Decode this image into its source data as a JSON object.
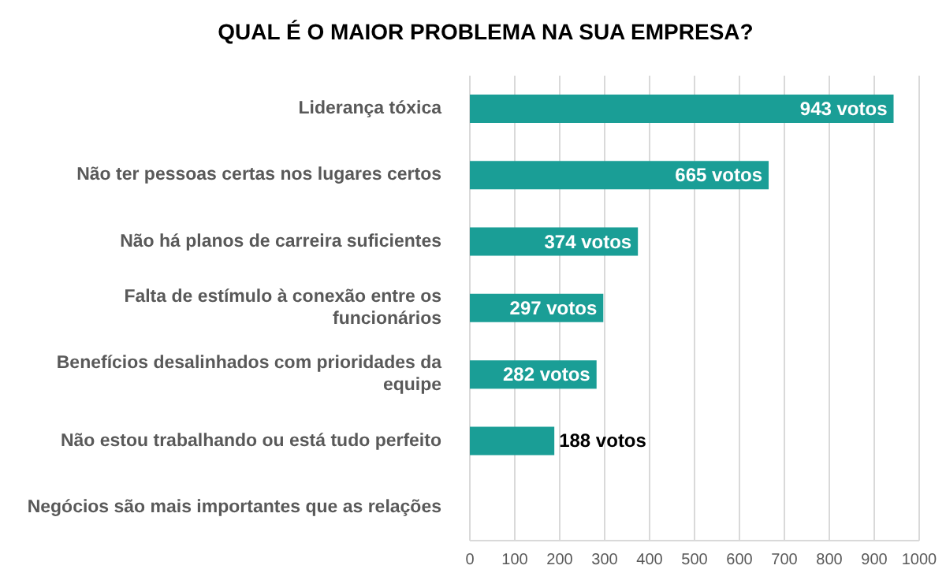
{
  "chart_data": {
    "type": "bar",
    "orientation": "horizontal",
    "title": "QUAL É O MAIOR PROBLEMA NA SUA EMPRESA?",
    "categories": [
      "Liderança tóxica",
      "Não ter pessoas certas nos lugares certos",
      "Não há planos de carreira suficientes",
      "Falta de estímulo à conexão entre os funcionários",
      "Benefícios desalinhados com prioridades da equipe",
      "Não estou trabalhando ou está tudo perfeito",
      "Negócios são mais importantes  que as relações"
    ],
    "values": [
      943,
      665,
      374,
      297,
      282,
      188,
      0
    ],
    "value_labels": [
      "943 votos",
      "665 votos",
      "374 votos",
      "297 votos",
      "282 votos",
      "188 votos",
      null
    ],
    "color": "#1a9e96",
    "xlim": [
      0,
      1000
    ],
    "xticks": [
      0,
      100,
      200,
      300,
      400,
      500,
      600,
      700,
      800,
      900,
      1000
    ],
    "grid": "x",
    "legend": false
  }
}
